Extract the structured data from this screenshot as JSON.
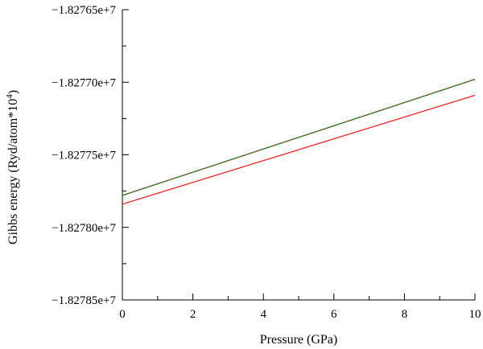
{
  "chart_data": {
    "type": "line",
    "xlabel": "Pressure (GPa)",
    "ylabel_main": "Gibbs energy (Ryd/atom*10",
    "ylabel_sup": "4",
    "ylabel_close": ")",
    "xlim": [
      0,
      10
    ],
    "ylim": [
      -18278500,
      -18276500
    ],
    "x_ticks": [
      0,
      2,
      4,
      6,
      8,
      10
    ],
    "x_tick_labels": [
      "0",
      "2",
      "4",
      "6",
      "8",
      "10"
    ],
    "y_ticks": [
      -18276500,
      -18277000,
      -18277500,
      -18278000,
      -18278500
    ],
    "y_tick_labels": [
      "−1.82765e+7",
      "−1.82770e+7",
      "−1.82775e+7",
      "−1.82780e+7",
      "−1.82785e+7"
    ],
    "grid": false,
    "series": [
      {
        "color": "#7a3a2a",
        "dash": "none",
        "x": [
          0,
          10
        ],
        "y": [
          -18277780,
          -18276980
        ]
      },
      {
        "color": "#2e8b2e",
        "dash": "6,4",
        "x": [
          0,
          10
        ],
        "y": [
          -18277780,
          -18276980
        ]
      },
      {
        "color": "#e8262a",
        "dash": "none",
        "x": [
          0,
          10
        ],
        "y": [
          -18277840,
          -18277090
        ]
      }
    ]
  }
}
